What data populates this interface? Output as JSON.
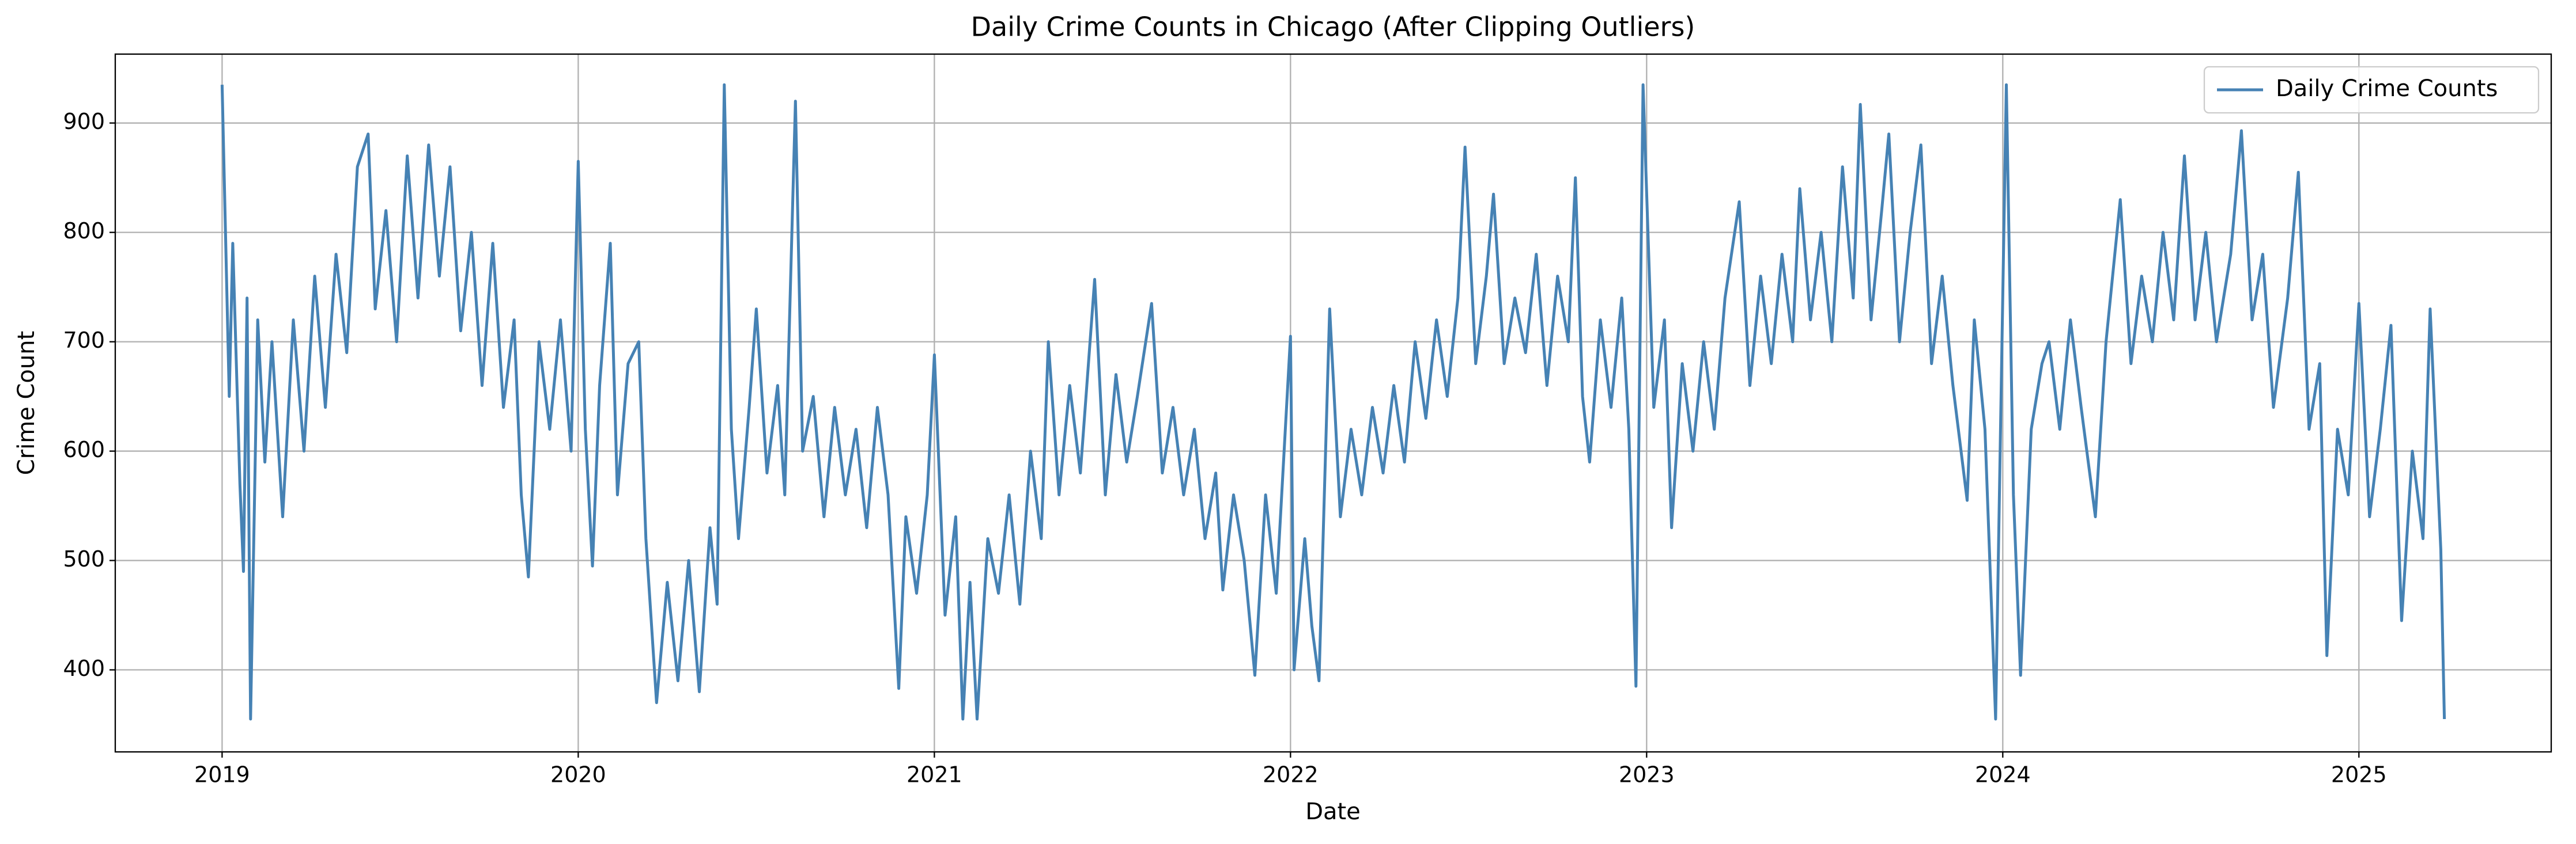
{
  "chart_data": {
    "type": "line",
    "title": "Daily Crime Counts in Chicago (After Clipping Outliers)",
    "x_label": "Date",
    "y_label": "Crime Count",
    "xlim": [
      2018.7,
      2025.54
    ],
    "ylim": [
      325,
      963
    ],
    "xticks": [
      2019,
      2020,
      2021,
      2022,
      2023,
      2024,
      2025
    ],
    "yticks": [
      400,
      500,
      600,
      700,
      800,
      900
    ],
    "grid": true,
    "legend": "upper right",
    "x": [
      2019.0,
      2019.02,
      2019.03,
      2019.05,
      2019.06,
      2019.07,
      2019.08,
      2019.1,
      2019.12,
      2019.14,
      2019.17,
      2019.2,
      2019.23,
      2019.26,
      2019.29,
      2019.32,
      2019.35,
      2019.38,
      2019.41,
      2019.43,
      2019.46,
      2019.49,
      2019.52,
      2019.55,
      2019.58,
      2019.61,
      2019.64,
      2019.67,
      2019.7,
      2019.73,
      2019.76,
      2019.79,
      2019.82,
      2019.84,
      2019.86,
      2019.89,
      2019.92,
      2019.95,
      2019.98,
      2020.0,
      2020.02,
      2020.04,
      2020.06,
      2020.09,
      2020.11,
      2020.14,
      2020.17,
      2020.19,
      2020.22,
      2020.25,
      2020.28,
      2020.31,
      2020.34,
      2020.37,
      2020.39,
      2020.41,
      2020.43,
      2020.45,
      2020.48,
      2020.5,
      2020.53,
      2020.56,
      2020.58,
      2020.61,
      2020.63,
      2020.66,
      2020.69,
      2020.72,
      2020.75,
      2020.78,
      2020.81,
      2020.84,
      2020.87,
      2020.9,
      2020.92,
      2020.95,
      2020.98,
      2021.0,
      2021.03,
      2021.06,
      2021.08,
      2021.1,
      2021.12,
      2021.15,
      2021.18,
      2021.21,
      2021.24,
      2021.27,
      2021.3,
      2021.32,
      2021.35,
      2021.38,
      2021.41,
      2021.45,
      2021.48,
      2021.51,
      2021.54,
      2021.57,
      2021.61,
      2021.64,
      2021.67,
      2021.7,
      2021.73,
      2021.76,
      2021.79,
      2021.81,
      2021.84,
      2021.87,
      2021.9,
      2021.93,
      2021.96,
      2022.0,
      2022.01,
      2022.04,
      2022.06,
      2022.08,
      2022.11,
      2022.14,
      2022.17,
      2022.2,
      2022.23,
      2022.26,
      2022.29,
      2022.32,
      2022.35,
      2022.38,
      2022.41,
      2022.44,
      2022.47,
      2022.49,
      2022.52,
      2022.55,
      2022.57,
      2022.6,
      2022.63,
      2022.66,
      2022.69,
      2022.72,
      2022.75,
      2022.78,
      2022.8,
      2022.82,
      2022.84,
      2022.87,
      2022.9,
      2022.93,
      2022.95,
      2022.97,
      2022.99,
      2023.02,
      2023.05,
      2023.07,
      2023.1,
      2023.13,
      2023.16,
      2023.19,
      2023.22,
      2023.26,
      2023.29,
      2023.32,
      2023.35,
      2023.38,
      2023.41,
      2023.43,
      2023.46,
      2023.49,
      2023.52,
      2023.55,
      2023.58,
      2023.6,
      2023.63,
      2023.66,
      2023.68,
      2023.71,
      2023.74,
      2023.77,
      2023.8,
      2023.83,
      2023.86,
      2023.9,
      2023.92,
      2023.95,
      2023.98,
      2024.01,
      2024.03,
      2024.05,
      2024.08,
      2024.11,
      2024.13,
      2024.16,
      2024.19,
      2024.22,
      2024.26,
      2024.29,
      2024.33,
      2024.36,
      2024.39,
      2024.42,
      2024.45,
      2024.48,
      2024.51,
      2024.54,
      2024.57,
      2024.6,
      2024.64,
      2024.67,
      2024.7,
      2024.73,
      2024.76,
      2024.8,
      2024.83,
      2024.86,
      2024.89,
      2024.91,
      2024.94,
      2024.97,
      2025.0,
      2025.03,
      2025.06,
      2025.09,
      2025.12,
      2025.15,
      2025.18,
      2025.2,
      2025.23,
      2025.24
    ],
    "series": [
      {
        "name": "Daily Crime Counts",
        "color": "#4682b4",
        "values": [
          935,
          650,
          790,
          570,
          490,
          740,
          355,
          720,
          590,
          700,
          540,
          720,
          600,
          760,
          640,
          780,
          690,
          860,
          890,
          730,
          820,
          700,
          870,
          740,
          880,
          760,
          860,
          710,
          800,
          660,
          790,
          640,
          720,
          560,
          485,
          700,
          620,
          720,
          600,
          865,
          620,
          495,
          660,
          790,
          560,
          680,
          700,
          520,
          370,
          480,
          390,
          500,
          380,
          530,
          460,
          935,
          620,
          520,
          640,
          730,
          580,
          660,
          560,
          920,
          600,
          650,
          540,
          640,
          560,
          620,
          530,
          640,
          560,
          383,
          540,
          470,
          560,
          688,
          450,
          540,
          355,
          480,
          355,
          520,
          470,
          560,
          460,
          600,
          520,
          700,
          560,
          660,
          580,
          757,
          560,
          670,
          590,
          650,
          735,
          580,
          640,
          560,
          620,
          520,
          580,
          473,
          560,
          500,
          395,
          560,
          470,
          705,
          400,
          520,
          440,
          390,
          730,
          540,
          620,
          560,
          640,
          580,
          660,
          590,
          700,
          630,
          720,
          650,
          740,
          878,
          680,
          760,
          835,
          680,
          740,
          690,
          780,
          660,
          760,
          700,
          850,
          650,
          590,
          720,
          640,
          740,
          620,
          385,
          935,
          640,
          720,
          530,
          680,
          600,
          700,
          620,
          740,
          828,
          660,
          760,
          680,
          780,
          700,
          840,
          720,
          800,
          700,
          860,
          740,
          917,
          720,
          820,
          890,
          700,
          800,
          880,
          680,
          760,
          660,
          555,
          720,
          620,
          355,
          935,
          560,
          395,
          620,
          680,
          700,
          620,
          720,
          640,
          540,
          700,
          830,
          680,
          760,
          700,
          800,
          720,
          870,
          720,
          800,
          700,
          780,
          893,
          720,
          780,
          640,
          740,
          855,
          620,
          680,
          413,
          620,
          560,
          735,
          540,
          620,
          715,
          445,
          600,
          520,
          730,
          510,
          355
        ]
      }
    ]
  }
}
